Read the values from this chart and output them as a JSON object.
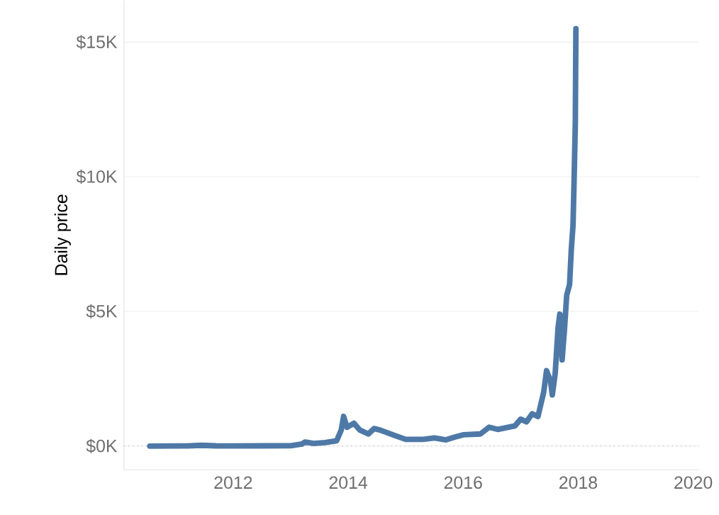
{
  "chart_data": {
    "type": "line",
    "ylabel": "Daily price",
    "x": [
      2010.55,
      2011.2,
      2011.45,
      2011.7,
      2012.0,
      2012.5,
      2013.0,
      2013.2,
      2013.25,
      2013.4,
      2013.6,
      2013.8,
      2013.88,
      2013.92,
      2013.98,
      2014.1,
      2014.2,
      2014.35,
      2014.45,
      2014.55,
      2014.8,
      2015.0,
      2015.3,
      2015.5,
      2015.7,
      2015.85,
      2016.0,
      2016.3,
      2016.45,
      2016.6,
      2016.9,
      2017.0,
      2017.1,
      2017.2,
      2017.3,
      2017.4,
      2017.45,
      2017.52,
      2017.55,
      2017.6,
      2017.65,
      2017.68,
      2017.72,
      2017.76,
      2017.8,
      2017.85,
      2017.88,
      2017.91,
      2017.93,
      2017.95,
      2017.96
    ],
    "series": [
      {
        "color": "#4e79a7",
        "values": [
          0,
          5,
          30,
          10,
          5,
          10,
          13,
          80,
          150,
          100,
          130,
          200,
          600,
          1100,
          700,
          850,
          600,
          450,
          650,
          600,
          400,
          250,
          250,
          300,
          230,
          330,
          420,
          450,
          700,
          620,
          750,
          1000,
          900,
          1200,
          1100,
          2000,
          2800,
          2400,
          1900,
          2700,
          4400,
          4900,
          3200,
          4300,
          5600,
          6000,
          7300,
          8200,
          10000,
          12000,
          15500
        ]
      }
    ],
    "xlim": [
      2010.1,
      2020.1
    ],
    "xticks": [
      2012,
      2014,
      2016,
      2018,
      2020
    ],
    "ylim": [
      -880,
      16550
    ],
    "yticks": [
      {
        "value": 0,
        "label": "$0K"
      },
      {
        "value": 5000,
        "label": "$5K"
      },
      {
        "value": 10000,
        "label": "$10K"
      },
      {
        "value": 15000,
        "label": "$15K"
      }
    ],
    "grid": "y",
    "ref_lines": [
      {
        "axis": "y",
        "value": 0,
        "color": "#aaaaaa",
        "line_style": "dotted"
      }
    ]
  }
}
